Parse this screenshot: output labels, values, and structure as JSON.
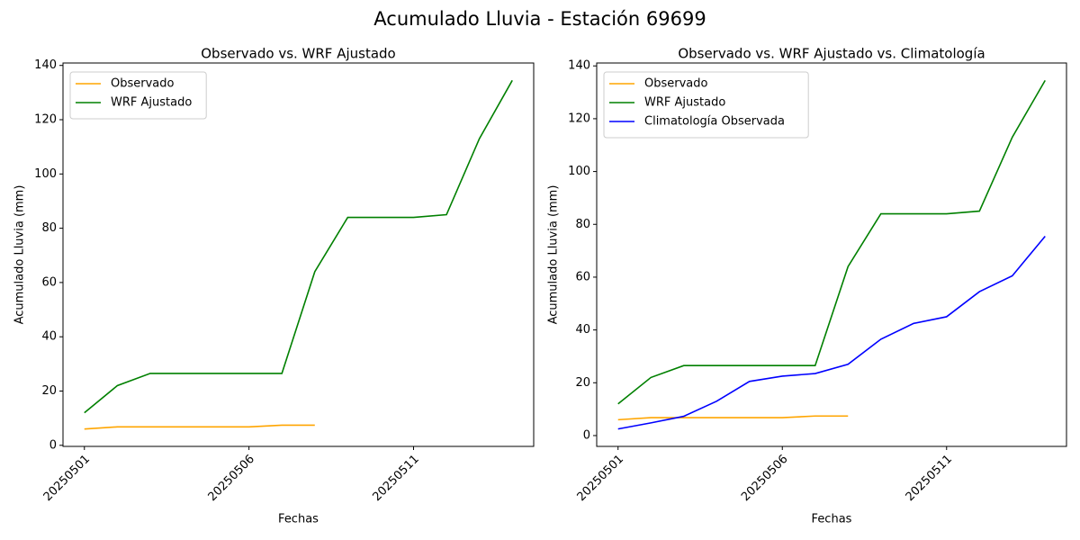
{
  "title": "Acumulado Lluvia - Estación 69699",
  "chart_data": [
    {
      "type": "line",
      "title": "Observado vs. WRF Ajustado",
      "x_label": "Fechas",
      "y_label": "Acumulado Lluvia (mm)",
      "categories": [
        "20250501",
        null,
        null,
        null,
        null,
        "20250506",
        null,
        null,
        null,
        null,
        "20250511",
        null,
        null,
        null
      ],
      "series": [
        {
          "name": "Observado",
          "color": "orange",
          "values": [
            6,
            6.8,
            6.8,
            6.8,
            6.8,
            6.8,
            7.4,
            7.4,
            null,
            null,
            null,
            null,
            null,
            null
          ]
        },
        {
          "name": "WRF Ajustado",
          "color": "green",
          "values": [
            12,
            22,
            26.5,
            26.5,
            26.5,
            26.5,
            26.5,
            64,
            84,
            84,
            84,
            85,
            113,
            134.5
          ]
        }
      ],
      "ylim": [
        -0.4,
        140.9
      ],
      "yticks": [
        0,
        20,
        40,
        60,
        80,
        100,
        120,
        140
      ],
      "legend": "upper left"
    },
    {
      "type": "line",
      "title": "Observado vs. WRF Ajustado vs. Climatología",
      "x_label": "Fechas",
      "y_label": "Acumulado Lluvia (mm)",
      "categories": [
        "20250501",
        null,
        null,
        null,
        null,
        "20250506",
        null,
        null,
        null,
        null,
        "20250511",
        null,
        null,
        null
      ],
      "series": [
        {
          "name": "Observado",
          "color": "orange",
          "values": [
            6,
            6.8,
            6.8,
            6.8,
            6.8,
            6.8,
            7.4,
            7.4,
            null,
            null,
            null,
            null,
            null,
            null
          ]
        },
        {
          "name": "WRF Ajustado",
          "color": "green",
          "values": [
            12,
            22,
            26.5,
            26.5,
            26.5,
            26.5,
            26.5,
            64,
            84,
            84,
            84,
            85,
            113,
            134.5
          ]
        },
        {
          "name": "Climatología Observada",
          "color": "blue",
          "values": [
            2.5,
            4.8,
            7.3,
            13,
            20.5,
            22.5,
            23.5,
            27,
            36.5,
            42.5,
            45,
            54.5,
            60.5,
            75.5
          ]
        }
      ],
      "ylim": [
        -4.1,
        141.1
      ],
      "yticks": [
        0,
        20,
        40,
        60,
        80,
        100,
        120,
        140
      ],
      "legend": "upper left"
    }
  ]
}
